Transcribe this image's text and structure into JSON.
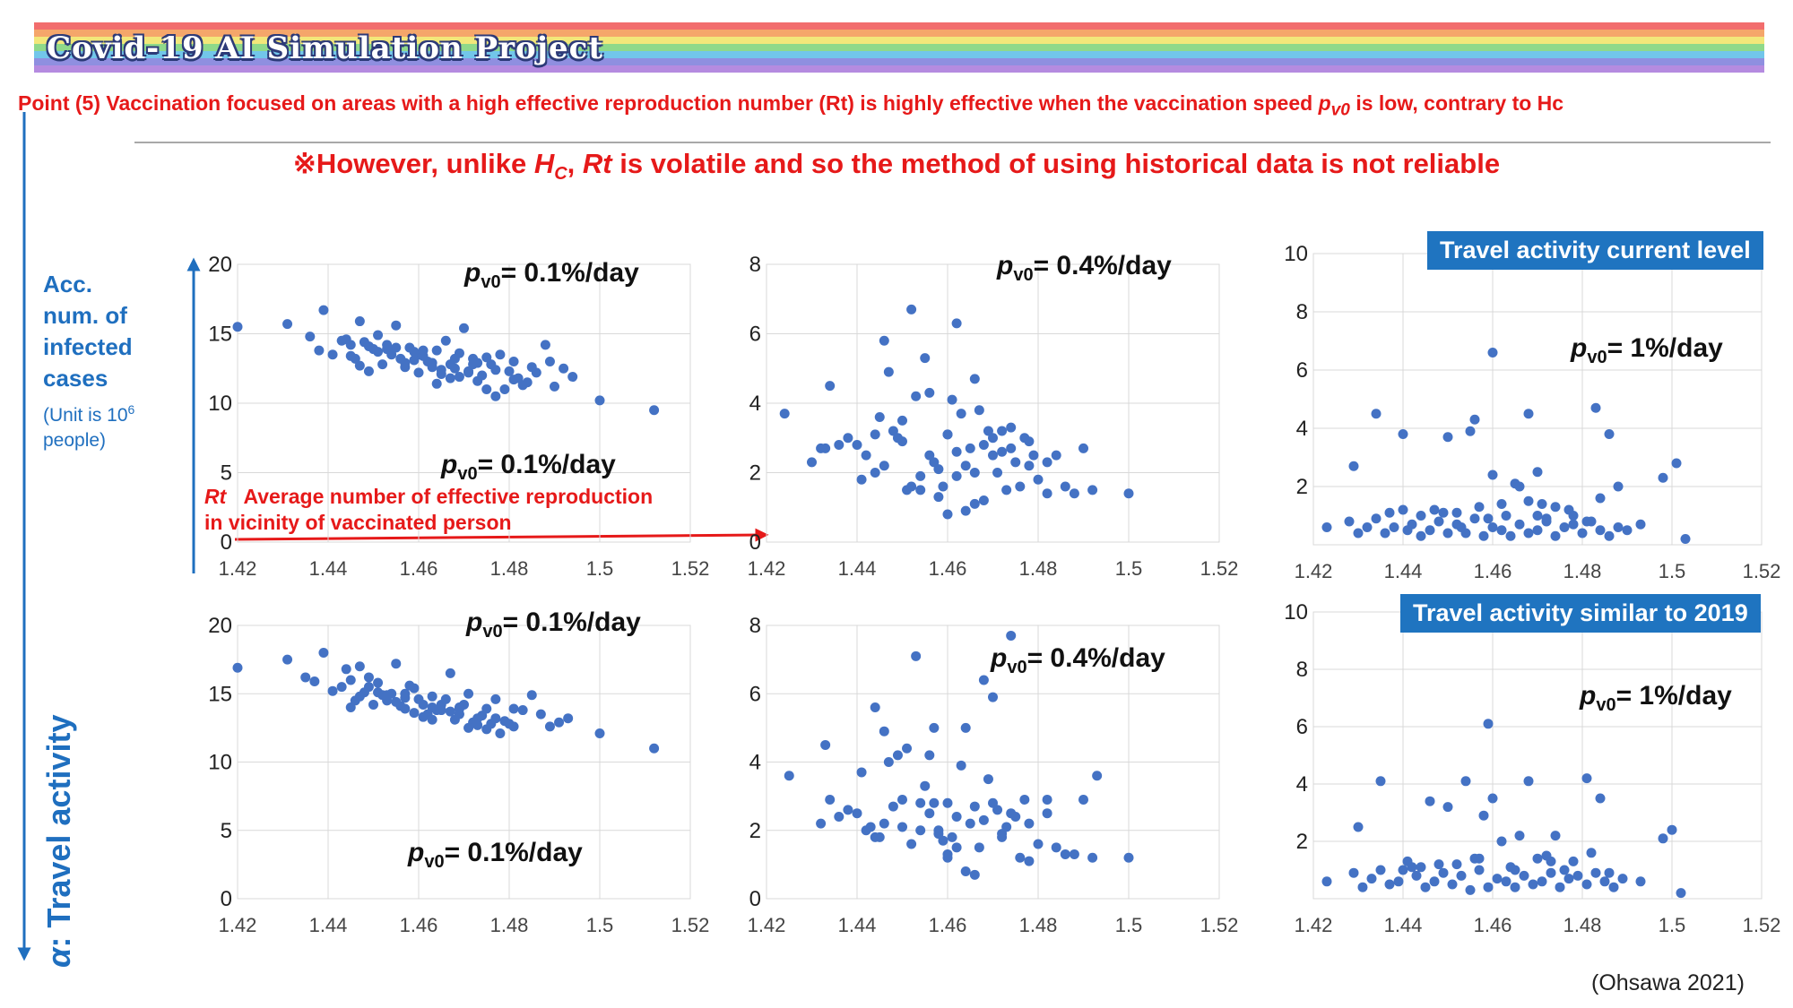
{
  "banner": {
    "title": "Covid-19 AI Simulation Project",
    "stripe_colors": [
      "#f26d6d",
      "#f5a66a",
      "#f2e77a",
      "#8fd98a",
      "#72c6ea",
      "#8f8fe0",
      "#b58be0"
    ]
  },
  "point_text": {
    "before": "Point (5) Vaccination focused on areas with a high effective reproduction number (Rt) is highly effective when the vaccination speed ",
    "var": "p",
    "sub": "v0",
    "after": " is low, contrary to Hc"
  },
  "however_text": {
    "prefix": "※However, unlike ",
    "hc": "H",
    "hc_sub": "C",
    "comma": ", ",
    "rt": "Rt",
    "suffix": " is volatile and so the method of using historical data is not reliable"
  },
  "y_axis_label": {
    "lines": [
      "Acc.",
      "num. of",
      "infected",
      "cases"
    ],
    "unit_line1": "(Unit is 10",
    "unit_sup": "6",
    "unit_line2": "people)"
  },
  "travel_axis_label": {
    "alpha": "α",
    "text": ": Travel activity"
  },
  "rt_annotation": {
    "rt": "Rt",
    "line1": "Average number of effective reproduction",
    "line2": "in vicinity of vaccinated person"
  },
  "badges": {
    "current": "Travel activity current level",
    "similar": "Travel activity similar to 2019"
  },
  "citation": "(Ohsawa 2021)",
  "colors": {
    "accent_red": "#e61919",
    "accent_blue": "#1f6fbf",
    "point": "#4472c4",
    "grid": "#d9d9d9"
  },
  "chart_data": [
    {
      "type": "scatter",
      "panel": "top-left",
      "annotation": {
        "p": "p",
        "sub": "v0",
        "text": "= 0.1%/day"
      },
      "annotation_secondary": {
        "p": "p",
        "sub": "v0",
        "text": "= 0.1%/day"
      },
      "xlim": [
        1.42,
        1.52
      ],
      "ylim": [
        0,
        20
      ],
      "xticks": [
        "1.42",
        "1.44",
        "1.46",
        "1.48",
        "1.5",
        "1.52"
      ],
      "yticks": [
        "0",
        "5",
        "10",
        "15",
        "20"
      ],
      "x": [
        1.42,
        1.431,
        1.436,
        1.439,
        1.438,
        1.441,
        1.443,
        1.445,
        1.447,
        1.449,
        1.451,
        1.453,
        1.455,
        1.456,
        1.458,
        1.46,
        1.462,
        1.464,
        1.466,
        1.468,
        1.47,
        1.472,
        1.474,
        1.476,
        1.478,
        1.48,
        1.482,
        1.484,
        1.486,
        1.488,
        1.49,
        1.492,
        1.494,
        1.5,
        1.512,
        1.444,
        1.446,
        1.448,
        1.45,
        1.452,
        1.454,
        1.457,
        1.459,
        1.461,
        1.463,
        1.465,
        1.467,
        1.469,
        1.471,
        1.473,
        1.475,
        1.477,
        1.479,
        1.481,
        1.483,
        1.447,
        1.451,
        1.455,
        1.459,
        1.463,
        1.467,
        1.471,
        1.475,
        1.449,
        1.453,
        1.457,
        1.461,
        1.465,
        1.469,
        1.473,
        1.477,
        1.481,
        1.485,
        1.489,
        1.46,
        1.464,
        1.468,
        1.472,
        1.445
      ],
      "y": [
        15.5,
        15.7,
        14.8,
        16.7,
        13.8,
        13.5,
        14.5,
        14.2,
        15.9,
        14.1,
        13.7,
        14.2,
        15.6,
        13.2,
        14.0,
        13.5,
        13.0,
        13.8,
        14.5,
        12.5,
        15.4,
        13.2,
        12.0,
        12.8,
        13.5,
        12.3,
        11.8,
        11.5,
        12.2,
        14.2,
        11.2,
        12.5,
        11.9,
        10.2,
        9.5,
        14.6,
        13.2,
        14.4,
        13.9,
        12.8,
        13.5,
        12.9,
        13.7,
        13.4,
        12.6,
        12.1,
        12.8,
        13.6,
        12.3,
        11.6,
        13.3,
        10.5,
        11.0,
        13.0,
        11.3,
        12.7,
        14.9,
        14.0,
        13.1,
        12.9,
        11.8,
        12.2,
        11.0,
        12.3,
        13.9,
        12.6,
        13.8,
        12.4,
        11.9,
        12.9,
        12.4,
        11.7,
        12.6,
        13.0,
        12.2,
        11.4,
        13.2,
        12.8,
        13.4
      ]
    },
    {
      "type": "scatter",
      "panel": "top-middle",
      "annotation": {
        "p": "p",
        "sub": "v0",
        "text": "= 0.4%/day"
      },
      "xlim": [
        1.42,
        1.52
      ],
      "ylim": [
        0,
        8
      ],
      "xticks": [
        "1.42",
        "1.44",
        "1.46",
        "1.48",
        "1.5",
        "1.52"
      ],
      "yticks": [
        "0",
        "2",
        "4",
        "6",
        "8"
      ],
      "x": [
        1.424,
        1.43,
        1.432,
        1.434,
        1.436,
        1.438,
        1.44,
        1.442,
        1.444,
        1.446,
        1.448,
        1.45,
        1.452,
        1.454,
        1.456,
        1.458,
        1.46,
        1.462,
        1.464,
        1.466,
        1.468,
        1.47,
        1.472,
        1.474,
        1.476,
        1.478,
        1.48,
        1.482,
        1.484,
        1.486,
        1.488,
        1.49,
        1.492,
        1.5,
        1.452,
        1.455,
        1.447,
        1.462,
        1.466,
        1.433,
        1.441,
        1.444,
        1.449,
        1.451,
        1.453,
        1.457,
        1.459,
        1.461,
        1.463,
        1.465,
        1.467,
        1.469,
        1.471,
        1.473,
        1.475,
        1.477,
        1.479,
        1.446,
        1.456,
        1.46,
        1.464,
        1.468,
        1.472,
        1.445,
        1.454,
        1.458,
        1.462,
        1.466,
        1.47,
        1.474,
        1.478,
        1.482,
        1.45,
        1.46
      ],
      "y": [
        3.7,
        2.3,
        2.7,
        4.5,
        2.8,
        3.0,
        2.8,
        2.5,
        2.0,
        2.2,
        3.2,
        2.9,
        1.6,
        1.9,
        2.5,
        2.1,
        3.1,
        2.6,
        0.9,
        2.0,
        2.8,
        2.5,
        3.2,
        2.7,
        1.6,
        2.2,
        1.8,
        2.3,
        2.5,
        1.6,
        1.4,
        2.7,
        1.5,
        1.4,
        6.7,
        5.3,
        4.9,
        6.3,
        4.7,
        2.7,
        1.8,
        3.1,
        3.0,
        1.5,
        4.2,
        2.3,
        1.6,
        4.1,
        3.7,
        2.7,
        3.8,
        3.2,
        2.0,
        1.5,
        2.3,
        3.0,
        2.5,
        5.8,
        4.3,
        3.1,
        2.2,
        1.2,
        2.6,
        3.6,
        1.5,
        1.3,
        1.9,
        1.1,
        3.0,
        3.3,
        2.9,
        1.4,
        3.5,
        0.8
      ]
    },
    {
      "type": "scatter",
      "panel": "top-right",
      "annotation": {
        "p": "p",
        "sub": "v0",
        "text": "= 1%/day"
      },
      "xlim": [
        1.42,
        1.52
      ],
      "ylim": [
        0,
        10
      ],
      "xticks": [
        "1.42",
        "1.44",
        "1.46",
        "1.48",
        "1.5",
        "1.52"
      ],
      "yticks": [
        "2",
        "4",
        "6",
        "8",
        "10"
      ],
      "x": [
        1.423,
        1.428,
        1.43,
        1.432,
        1.434,
        1.436,
        1.438,
        1.44,
        1.442,
        1.444,
        1.446,
        1.448,
        1.45,
        1.452,
        1.454,
        1.456,
        1.458,
        1.46,
        1.462,
        1.464,
        1.466,
        1.468,
        1.47,
        1.472,
        1.474,
        1.476,
        1.478,
        1.48,
        1.482,
        1.484,
        1.486,
        1.488,
        1.49,
        1.493,
        1.501,
        1.503,
        1.46,
        1.434,
        1.44,
        1.45,
        1.455,
        1.468,
        1.483,
        1.46,
        1.465,
        1.47,
        1.486,
        1.498,
        1.429,
        1.437,
        1.447,
        1.457,
        1.463,
        1.471,
        1.477,
        1.481,
        1.444,
        1.452,
        1.466,
        1.474,
        1.459,
        1.449,
        1.468,
        1.478,
        1.488,
        1.453,
        1.462,
        1.441,
        1.472,
        1.484,
        1.456,
        1.47
      ],
      "y": [
        0.6,
        0.8,
        0.4,
        0.6,
        0.9,
        0.4,
        0.6,
        1.2,
        0.7,
        0.3,
        0.5,
        0.8,
        0.4,
        0.7,
        0.4,
        0.9,
        0.3,
        0.6,
        0.5,
        0.3,
        0.7,
        0.4,
        0.5,
        0.8,
        0.3,
        0.6,
        0.7,
        0.4,
        0.8,
        0.5,
        0.3,
        0.6,
        0.5,
        0.7,
        2.8,
        0.2,
        6.6,
        4.5,
        3.8,
        3.7,
        3.9,
        4.5,
        4.7,
        2.4,
        2.1,
        2.5,
        3.8,
        2.3,
        2.7,
        1.1,
        1.2,
        1.3,
        1.0,
        1.4,
        1.2,
        0.8,
        1.0,
        1.1,
        2.0,
        1.3,
        0.9,
        1.1,
        1.5,
        1.0,
        2.0,
        0.6,
        1.4,
        0.5,
        0.9,
        1.6,
        4.3,
        1.0
      ]
    },
    {
      "type": "scatter",
      "panel": "bottom-left",
      "annotation": {
        "p": "p",
        "sub": "v0",
        "text": "= 0.1%/day"
      },
      "annotation_secondary": {
        "p": "p",
        "sub": "v0",
        "text": "= 0.1%/day"
      },
      "xlim": [
        1.42,
        1.52
      ],
      "ylim": [
        0,
        20
      ],
      "xticks": [
        "1.42",
        "1.44",
        "1.46",
        "1.48",
        "1.5",
        "1.52"
      ],
      "yticks": [
        "0",
        "5",
        "10",
        "15",
        "20"
      ],
      "x": [
        1.42,
        1.431,
        1.435,
        1.437,
        1.439,
        1.441,
        1.443,
        1.445,
        1.447,
        1.449,
        1.451,
        1.453,
        1.455,
        1.457,
        1.459,
        1.461,
        1.463,
        1.465,
        1.467,
        1.469,
        1.471,
        1.473,
        1.475,
        1.477,
        1.479,
        1.481,
        1.483,
        1.485,
        1.487,
        1.489,
        1.491,
        1.493,
        1.5,
        1.512,
        1.444,
        1.446,
        1.448,
        1.45,
        1.452,
        1.454,
        1.456,
        1.458,
        1.46,
        1.462,
        1.464,
        1.466,
        1.468,
        1.47,
        1.472,
        1.474,
        1.476,
        1.478,
        1.48,
        1.447,
        1.451,
        1.455,
        1.459,
        1.463,
        1.467,
        1.471,
        1.475,
        1.449,
        1.453,
        1.457,
        1.461,
        1.465,
        1.469,
        1.473,
        1.477,
        1.445,
        1.457,
        1.463,
        1.469,
        1.481
      ],
      "y": [
        16.9,
        17.5,
        16.2,
        15.9,
        18.0,
        15.2,
        15.5,
        16.0,
        17.0,
        16.2,
        15.8,
        14.5,
        17.2,
        15.0,
        15.4,
        14.2,
        14.8,
        13.8,
        16.5,
        14.0,
        15.0,
        13.2,
        12.4,
        14.6,
        13.0,
        12.6,
        13.8,
        14.9,
        13.5,
        12.6,
        12.9,
        13.2,
        12.1,
        11.0,
        16.8,
        14.5,
        15.1,
        14.2,
        14.9,
        15.0,
        14.1,
        15.6,
        14.6,
        13.5,
        13.8,
        14.6,
        13.1,
        14.2,
        12.9,
        13.4,
        12.8,
        12.1,
        12.8,
        14.8,
        15.1,
        14.4,
        13.6,
        14.0,
        13.7,
        12.5,
        13.9,
        15.5,
        14.9,
        13.9,
        13.3,
        14.2,
        13.9,
        12.7,
        13.2,
        14.0,
        14.7,
        13.1,
        13.5,
        13.9
      ]
    },
    {
      "type": "scatter",
      "panel": "bottom-middle",
      "annotation": {
        "p": "p",
        "sub": "v0",
        "text": "= 0.4%/day"
      },
      "xlim": [
        1.42,
        1.52
      ],
      "ylim": [
        0,
        8
      ],
      "xticks": [
        "1.42",
        "1.44",
        "1.46",
        "1.48",
        "1.5",
        "1.52"
      ],
      "yticks": [
        "0",
        "2",
        "4",
        "6",
        "8"
      ],
      "x": [
        1.425,
        1.432,
        1.434,
        1.436,
        1.438,
        1.44,
        1.442,
        1.444,
        1.446,
        1.448,
        1.45,
        1.452,
        1.454,
        1.456,
        1.458,
        1.46,
        1.462,
        1.464,
        1.466,
        1.468,
        1.47,
        1.472,
        1.474,
        1.476,
        1.478,
        1.48,
        1.482,
        1.484,
        1.486,
        1.488,
        1.49,
        1.492,
        1.5,
        1.453,
        1.474,
        1.468,
        1.444,
        1.464,
        1.433,
        1.441,
        1.447,
        1.449,
        1.451,
        1.455,
        1.457,
        1.459,
        1.461,
        1.463,
        1.465,
        1.467,
        1.469,
        1.471,
        1.473,
        1.475,
        1.477,
        1.446,
        1.456,
        1.46,
        1.466,
        1.47,
        1.445,
        1.454,
        1.458,
        1.462,
        1.472,
        1.478,
        1.482,
        1.45,
        1.46,
        1.493,
        1.443,
        1.457
      ],
      "y": [
        3.6,
        2.2,
        2.9,
        2.4,
        2.6,
        2.5,
        2.0,
        1.8,
        2.2,
        2.7,
        2.9,
        1.6,
        2.0,
        2.5,
        1.9,
        2.8,
        2.4,
        0.8,
        2.7,
        2.3,
        2.8,
        1.9,
        2.5,
        1.2,
        2.2,
        1.6,
        2.9,
        1.5,
        1.3,
        1.3,
        2.9,
        1.2,
        1.2,
        7.1,
        7.7,
        6.4,
        5.6,
        5.0,
        4.5,
        3.7,
        4.0,
        4.2,
        4.4,
        3.3,
        2.8,
        1.7,
        1.8,
        3.9,
        2.2,
        1.5,
        3.5,
        2.6,
        2.1,
        2.4,
        2.9,
        4.9,
        4.2,
        1.3,
        0.7,
        5.9,
        1.8,
        2.8,
        2.0,
        1.5,
        1.8,
        1.1,
        2.5,
        2.1,
        1.2,
        3.6,
        2.1,
        5.0
      ]
    },
    {
      "type": "scatter",
      "panel": "bottom-right",
      "annotation": {
        "p": "p",
        "sub": "v0",
        "text": "= 1%/day"
      },
      "xlim": [
        1.42,
        1.52
      ],
      "ylim": [
        0,
        10
      ],
      "xticks": [
        "1.42",
        "1.44",
        "1.46",
        "1.48",
        "1.5",
        "1.52"
      ],
      "yticks": [
        "2",
        "4",
        "6",
        "8",
        "10"
      ],
      "x": [
        1.423,
        1.429,
        1.431,
        1.433,
        1.435,
        1.437,
        1.439,
        1.441,
        1.443,
        1.445,
        1.447,
        1.449,
        1.451,
        1.453,
        1.455,
        1.457,
        1.459,
        1.461,
        1.463,
        1.465,
        1.467,
        1.469,
        1.471,
        1.473,
        1.475,
        1.477,
        1.479,
        1.481,
        1.483,
        1.485,
        1.487,
        1.489,
        1.493,
        1.498,
        1.502,
        1.459,
        1.435,
        1.446,
        1.454,
        1.46,
        1.468,
        1.481,
        1.45,
        1.458,
        1.466,
        1.474,
        1.484,
        1.5,
        1.43,
        1.44,
        1.448,
        1.456,
        1.464,
        1.472,
        1.478,
        1.486,
        1.444,
        1.452,
        1.462,
        1.47,
        1.476,
        1.442,
        1.457,
        1.465,
        1.473,
        1.482
      ],
      "y": [
        0.6,
        0.9,
        0.4,
        0.7,
        1.0,
        0.5,
        0.6,
        1.3,
        0.8,
        0.4,
        0.6,
        0.9,
        0.5,
        0.8,
        0.3,
        1.0,
        0.4,
        0.7,
        0.6,
        0.4,
        0.8,
        0.5,
        0.6,
        0.9,
        0.4,
        0.7,
        0.8,
        0.5,
        0.9,
        0.6,
        0.4,
        0.7,
        0.6,
        2.1,
        0.2,
        6.1,
        4.1,
        3.4,
        4.1,
        3.5,
        4.1,
        4.2,
        3.2,
        2.9,
        2.2,
        2.2,
        3.5,
        2.4,
        2.5,
        1.0,
        1.2,
        1.4,
        1.1,
        1.5,
        1.3,
        0.9,
        1.1,
        1.2,
        2.0,
        1.4,
        1.0,
        1.1,
        1.4,
        1.0,
        1.3,
        1.6
      ]
    }
  ]
}
